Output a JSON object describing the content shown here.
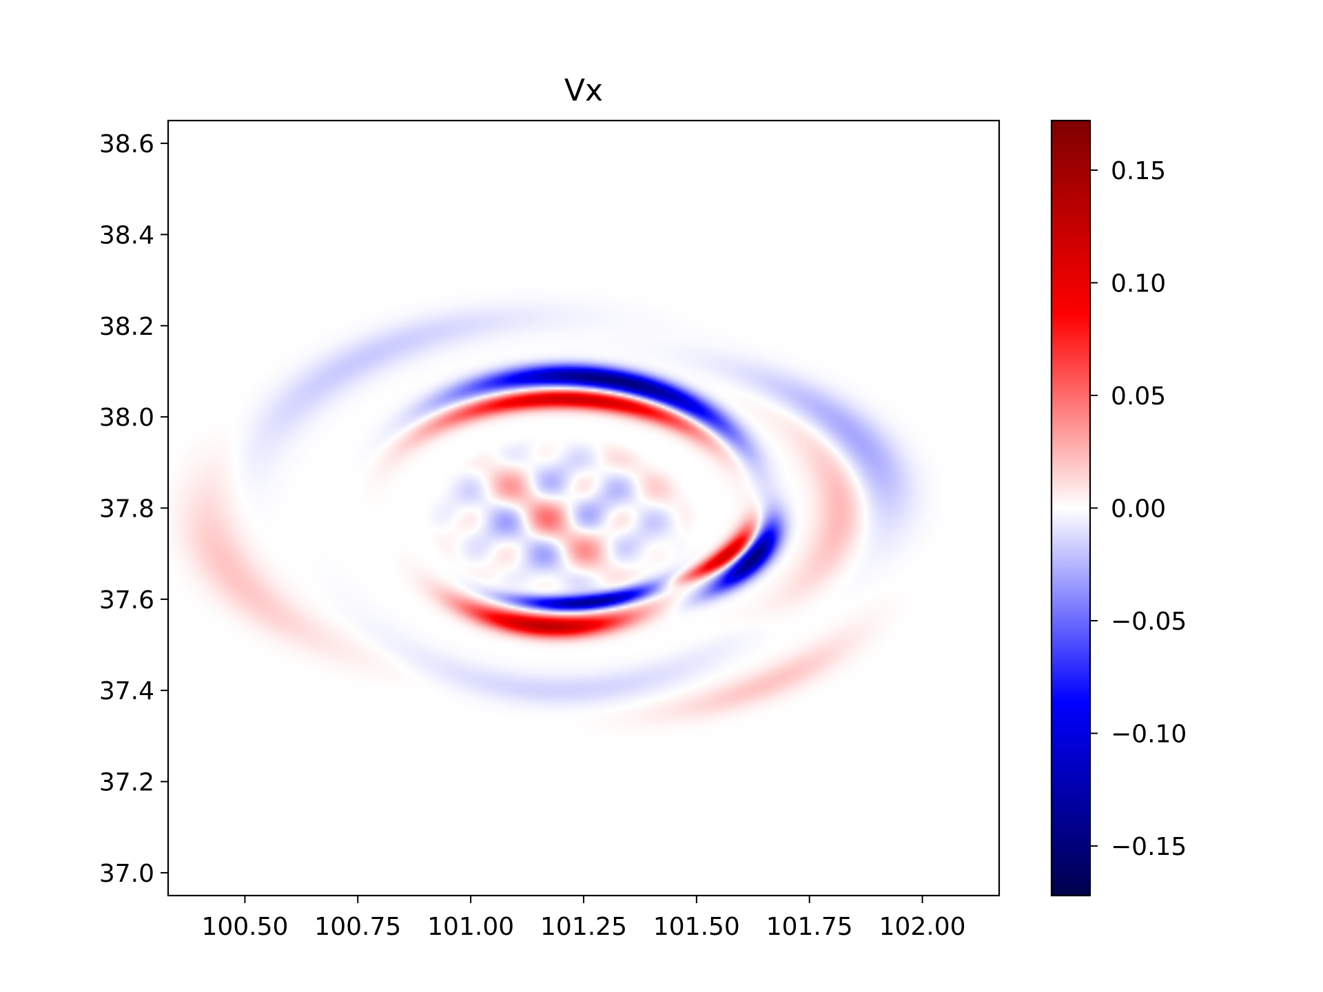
{
  "chart_data": {
    "type": "heatmap",
    "title": "Vx",
    "xlabel": "",
    "ylabel": "",
    "xlim": [
      100.33,
      102.17
    ],
    "ylim": [
      36.95,
      38.65
    ],
    "x_ticks": [
      100.5,
      100.75,
      101.0,
      101.25,
      101.5,
      101.75,
      102.0
    ],
    "x_tick_labels": [
      "100.50",
      "100.75",
      "101.00",
      "101.25",
      "101.50",
      "101.75",
      "102.00"
    ],
    "y_ticks": [
      37.0,
      37.2,
      37.4,
      37.6,
      37.8,
      38.0,
      38.2,
      38.4,
      38.6
    ],
    "y_tick_labels": [
      "37.0",
      "37.2",
      "37.4",
      "37.6",
      "37.8",
      "38.0",
      "38.2",
      "38.4",
      "38.6"
    ],
    "grid": false,
    "colormap": "seismic",
    "colormap_stops": [
      "#00004c",
      "#0000ff",
      "#ffffff",
      "#ff0000",
      "#7f0000"
    ],
    "colorbar": {
      "range": [
        -0.172,
        0.172
      ],
      "ticks": [
        0.15,
        0.1,
        0.05,
        0.0,
        -0.05,
        -0.1,
        -0.15
      ],
      "tick_labels": [
        "0.15",
        "0.10",
        "0.05",
        "0.00",
        "−0.05",
        "−0.10",
        "−0.15"
      ]
    },
    "field_features": [
      {
        "description": "negative arc (north)",
        "cx": 101.2,
        "cy": 37.8,
        "rx": 0.45,
        "ry": 0.29,
        "theta_center_deg": 75,
        "theta_width_deg": 40,
        "band": 0.03,
        "value": -0.15
      },
      {
        "description": "positive arc (north, inner)",
        "cx": 101.2,
        "cy": 37.8,
        "rx": 0.42,
        "ry": 0.24,
        "theta_center_deg": 85,
        "theta_width_deg": 42,
        "band": 0.028,
        "value": 0.12
      },
      {
        "description": "positive arc (south)",
        "cx": 101.2,
        "cy": 37.8,
        "rx": 0.38,
        "ry": 0.26,
        "theta_center_deg": 265,
        "theta_width_deg": 28,
        "band": 0.028,
        "value": 0.13
      },
      {
        "description": "negative arc (south, inner)",
        "cx": 101.2,
        "cy": 37.8,
        "rx": 0.36,
        "ry": 0.21,
        "theta_center_deg": 280,
        "theta_width_deg": 25,
        "band": 0.022,
        "value": -0.14
      },
      {
        "description": "negative arc (east)",
        "cx": 101.2,
        "cy": 37.8,
        "rx": 0.47,
        "ry": 0.26,
        "theta_center_deg": 335,
        "theta_width_deg": 18,
        "band": 0.025,
        "value": -0.15
      },
      {
        "description": "positive arc (east, inner)",
        "cx": 101.2,
        "cy": 37.8,
        "rx": 0.43,
        "ry": 0.2,
        "theta_center_deg": 330,
        "theta_width_deg": 20,
        "band": 0.02,
        "value": 0.12
      },
      {
        "description": "weak negative outer ring (NE)",
        "cx": 101.2,
        "cy": 37.8,
        "rx": 0.72,
        "ry": 0.36,
        "theta_center_deg": 25,
        "theta_width_deg": 30,
        "band": 0.05,
        "value": -0.03
      },
      {
        "description": "weak positive outer ring (E)",
        "cx": 101.2,
        "cy": 37.8,
        "rx": 0.62,
        "ry": 0.33,
        "theta_center_deg": 0,
        "theta_width_deg": 35,
        "band": 0.04,
        "value": 0.025
      },
      {
        "description": "weak positive outer ring (W)",
        "cx": 101.2,
        "cy": 37.8,
        "rx": 0.78,
        "ry": 0.4,
        "theta_center_deg": 200,
        "theta_width_deg": 30,
        "band": 0.05,
        "value": 0.02
      },
      {
        "description": "weak negative outer ring (NW)",
        "cx": 101.2,
        "cy": 37.8,
        "rx": 0.7,
        "ry": 0.42,
        "theta_center_deg": 130,
        "theta_width_deg": 35,
        "band": 0.05,
        "value": -0.018
      },
      {
        "description": "weak negative outer ring (S)",
        "cx": 101.2,
        "cy": 37.8,
        "rx": 0.55,
        "ry": 0.4,
        "theta_center_deg": 270,
        "theta_width_deg": 40,
        "band": 0.04,
        "value": -0.015
      },
      {
        "description": "weak positive outer ring (SE)",
        "cx": 101.2,
        "cy": 37.8,
        "rx": 0.8,
        "ry": 0.47,
        "theta_center_deg": 305,
        "theta_width_deg": 18,
        "band": 0.04,
        "value": 0.02
      }
    ]
  }
}
